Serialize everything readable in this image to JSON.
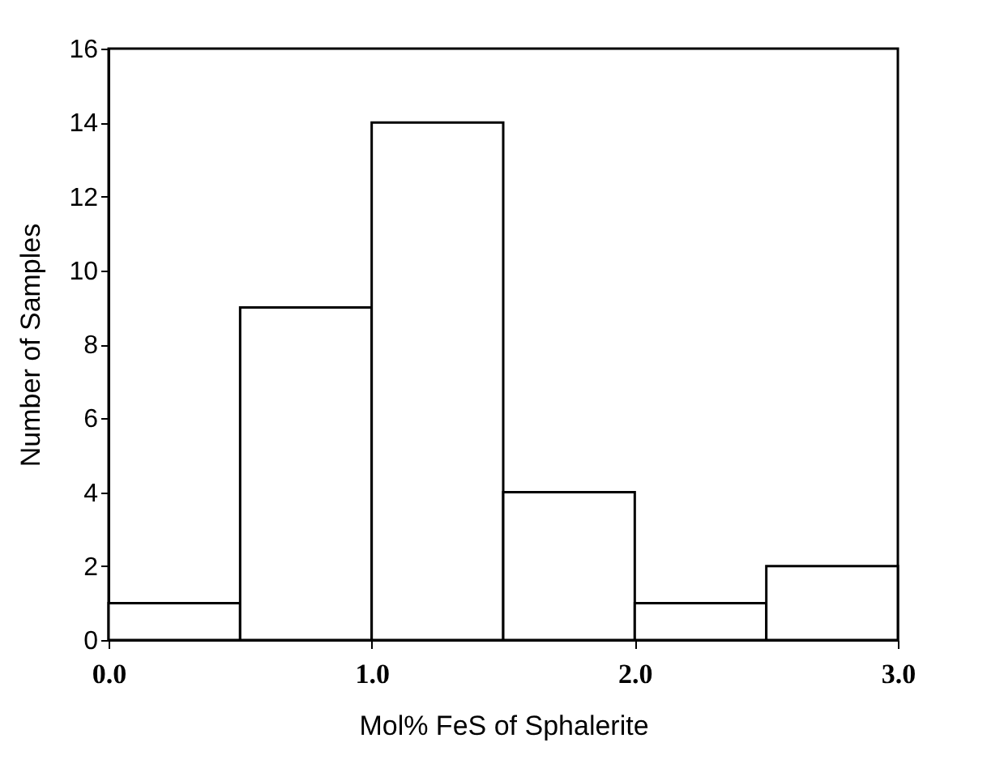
{
  "chart_data": {
    "type": "histogram",
    "xlabel": "Mol% FeS of Sphalerite",
    "ylabel": "Number of Samples",
    "bins": [
      0,
      0.5,
      1,
      1.5,
      2,
      2.5,
      3
    ],
    "values": [
      1,
      9,
      14,
      4,
      1,
      2
    ],
    "color": "#ffffff",
    "xlim": [
      0,
      3
    ],
    "xticks": [
      {
        "value": 0,
        "label": "0.0"
      },
      {
        "value": 1,
        "label": "1.0"
      },
      {
        "value": 2,
        "label": "2.0"
      },
      {
        "value": 3,
        "label": "3.0"
      }
    ],
    "ylim": [
      0,
      16
    ],
    "yticks": [
      0,
      2,
      4,
      6,
      8,
      10,
      12,
      14,
      16
    ],
    "grid": false
  }
}
